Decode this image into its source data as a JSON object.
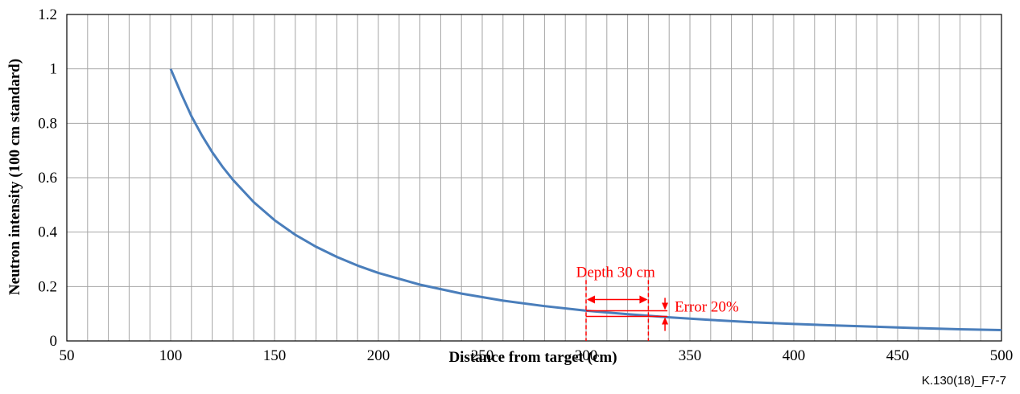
{
  "colors": {
    "series": "#4a7ebb",
    "annotation": "#ff0000",
    "grid": "#a6a6a6",
    "axis": "#000000"
  },
  "figure_ref": "K.130(18)_F7-7",
  "chart_data": {
    "type": "line",
    "xlabel": "Distance from target (cm)",
    "ylabel": "Neutron intensity (100 cm standard)",
    "xlim": [
      50,
      500
    ],
    "ylim": [
      0,
      1.2
    ],
    "x_ticks": [
      50,
      100,
      150,
      200,
      250,
      300,
      350,
      400,
      450,
      500
    ],
    "x_tick_labels": [
      "50",
      "100",
      "150",
      "200",
      "250",
      "300",
      "350",
      "400",
      "450",
      "500"
    ],
    "y_ticks": [
      0,
      0.2,
      0.4,
      0.6,
      0.8,
      1,
      1.2
    ],
    "y_tick_labels": [
      "0",
      "0.2",
      "0.4",
      "0.6",
      "0.8",
      "1",
      "1.2"
    ],
    "x_minor_step": 10,
    "y_minor_step": 0.2,
    "grid": true,
    "legend": false,
    "series": [
      {
        "x": [
          100,
          105,
          110,
          115,
          120,
          125,
          130,
          140,
          150,
          160,
          170,
          180,
          190,
          200,
          220,
          240,
          260,
          280,
          300,
          320,
          340,
          360,
          380,
          400,
          420,
          440,
          460,
          480,
          500
        ],
        "y": [
          1.0,
          0.91,
          0.826,
          0.756,
          0.694,
          0.64,
          0.592,
          0.51,
          0.444,
          0.39,
          0.346,
          0.309,
          0.277,
          0.25,
          0.207,
          0.174,
          0.148,
          0.128,
          0.111,
          0.098,
          0.087,
          0.077,
          0.069,
          0.0625,
          0.057,
          0.052,
          0.047,
          0.043,
          0.04
        ]
      }
    ],
    "annotations": {
      "depth_label": "Depth 30 cm",
      "error_label": "Error 20%",
      "depth_x_range": [
        300,
        330
      ],
      "error_y_range": [
        0.09,
        0.111
      ],
      "error_marker_x": 338
    }
  }
}
